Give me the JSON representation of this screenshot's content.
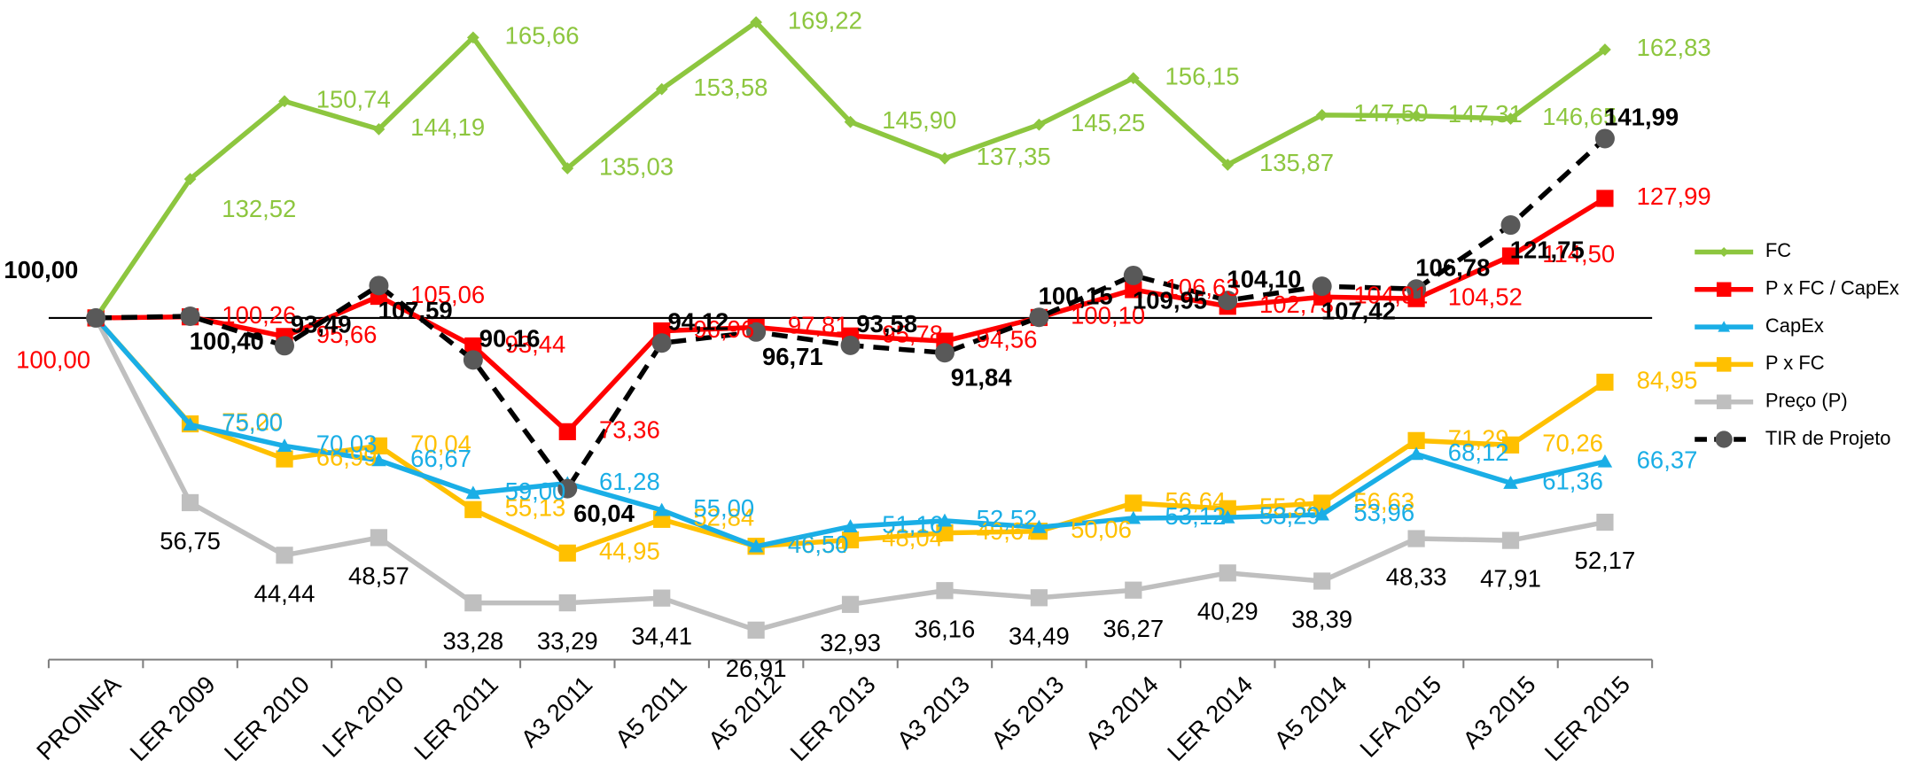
{
  "chart_data": {
    "type": "line",
    "categories": [
      "PROINFA",
      "LER 2009",
      "LER 2010",
      "LFA 2010",
      "LER 2011",
      "A3 2011",
      "A5 2011",
      "A5 2012",
      "LER 2013",
      "A3 2013",
      "A5 2013",
      "A3 2014",
      "LER 2014",
      "A5 2014",
      "LFA 2015",
      "A3 2015",
      "LER 2015"
    ],
    "ylim": [
      20,
      172
    ],
    "reference_line": 100,
    "legend": "right",
    "series": [
      {
        "name": "FC",
        "color": "#8dc63f",
        "marker": "diamond",
        "values": [
          100,
          132.52,
          150.74,
          144.19,
          165.66,
          135.03,
          153.58,
          169.22,
          145.9,
          137.35,
          145.25,
          156.15,
          135.87,
          147.5,
          147.31,
          146.65,
          162.83
        ],
        "value_labels": [
          null,
          "132,52",
          "150,74",
          "144,19",
          "165,66",
          "135,03",
          "153,58",
          "169,22",
          "145,90",
          "137,35",
          "145,25",
          "156,15",
          "135,87",
          "147,50",
          "147,31",
          "146,65",
          "162,83"
        ]
      },
      {
        "name": "P x FC / CapEx",
        "color": "#ff0000",
        "marker": "square",
        "values": [
          100,
          100.26,
          95.66,
          105.06,
          93.44,
          73.36,
          96.96,
          97.81,
          95.78,
          94.56,
          100.1,
          106.63,
          102.73,
          104.91,
          104.52,
          114.5,
          127.99
        ],
        "value_labels": [
          "100,00",
          "100,26",
          "95,66",
          "105,06",
          "93,44",
          "73,36",
          "96,96",
          "97,81",
          "95,78",
          "94,56",
          "100,10",
          "106,63",
          "102,73",
          "104,91",
          "104,52",
          "114,50",
          "127,99"
        ]
      },
      {
        "name": "CapEx",
        "color": "#1aaee6",
        "marker": "triangle",
        "values": [
          100,
          75.0,
          70.03,
          66.67,
          59.0,
          61.28,
          55.0,
          46.5,
          51.16,
          52.52,
          51.0,
          53.12,
          53.29,
          53.96,
          68.12,
          61.36,
          66.37
        ],
        "value_labels": [
          null,
          "75,00",
          "70,03",
          "66,67",
          "59,00",
          "61,28",
          "55,00",
          "46,50",
          "51,16",
          "52,52",
          null,
          "53,12",
          "53,29",
          "53,96",
          "68,12",
          "61,36",
          "66,37"
        ]
      },
      {
        "name": "P x FC",
        "color": "#ffc000",
        "marker": "square",
        "values": [
          100,
          75.2,
          66.99,
          70.04,
          55.13,
          44.95,
          52.84,
          46.54,
          48.04,
          49.67,
          50.06,
          56.64,
          55.34,
          56.63,
          71.29,
          70.26,
          84.95
        ],
        "value_labels": [
          null,
          "75,20",
          "66,99",
          "70,04",
          "55,13",
          "44,95",
          "52,84",
          "46,54",
          "48,04",
          "49,67",
          "50,06",
          "56,64",
          "55,34",
          "56,63",
          "71,29",
          "70,26",
          "84,95"
        ]
      },
      {
        "name": "Preço (P)",
        "color": "#bfbfbf",
        "marker": "square",
        "values": [
          100,
          56.75,
          44.44,
          48.57,
          33.28,
          33.29,
          34.41,
          26.91,
          32.93,
          36.16,
          34.49,
          36.27,
          40.29,
          38.39,
          48.33,
          47.91,
          52.17
        ],
        "value_labels": [
          null,
          "56,75",
          "44,44",
          "48,57",
          "33,28",
          "33,29",
          "34,41",
          "26,91",
          "32,93",
          "36,16",
          "34,49",
          "36,27",
          "40,29",
          "38,39",
          "48,33",
          "47,91",
          "52,17"
        ]
      },
      {
        "name": "TIR de Projeto",
        "color": "#000000",
        "marker": "circle",
        "dashed": true,
        "values": [
          100,
          100.4,
          93.49,
          107.59,
          90.16,
          60.04,
          94.12,
          96.71,
          93.58,
          91.84,
          100.15,
          109.95,
          104.1,
          107.42,
          106.78,
          121.75,
          141.99
        ],
        "value_labels": [
          "100,00",
          "100,40",
          "93,49",
          "107,59",
          "90,16",
          "60,04",
          "94,12",
          "96,71",
          "93,58",
          "91,84",
          "100,15",
          "109,95",
          "104,10",
          "107,42",
          "106,78",
          "121,75",
          "141,99"
        ]
      }
    ]
  }
}
